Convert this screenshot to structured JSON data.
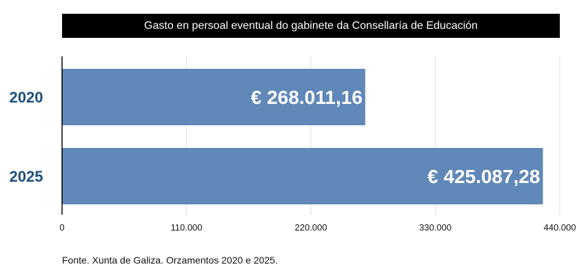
{
  "title": "Gasto en persoal eventual do gabinete da Consellaría de Educación",
  "source": "Fonte. Xunta de Galiza. Orzamentos 2020 e 2025.",
  "colors": {
    "bar": "#6088b8",
    "category_label": "#1b4f7d",
    "title_bg": "#000000",
    "grid": "#dddddd"
  },
  "chart_data": {
    "type": "bar",
    "orientation": "horizontal",
    "categories": [
      "2020",
      "2025"
    ],
    "values": [
      268011.16,
      425087.28
    ],
    "data_labels": [
      "€ 268.011,16",
      "€ 425.087,28"
    ],
    "xlim": [
      0,
      440000
    ],
    "xticks": [
      0,
      110000,
      220000,
      330000,
      440000
    ],
    "xtick_labels": [
      "0",
      "110.000",
      "220.000",
      "330.000",
      "440.000"
    ],
    "grid": "vertical",
    "title": "Gasto en persoal eventual do gabinete da Consellaría de Educación"
  }
}
